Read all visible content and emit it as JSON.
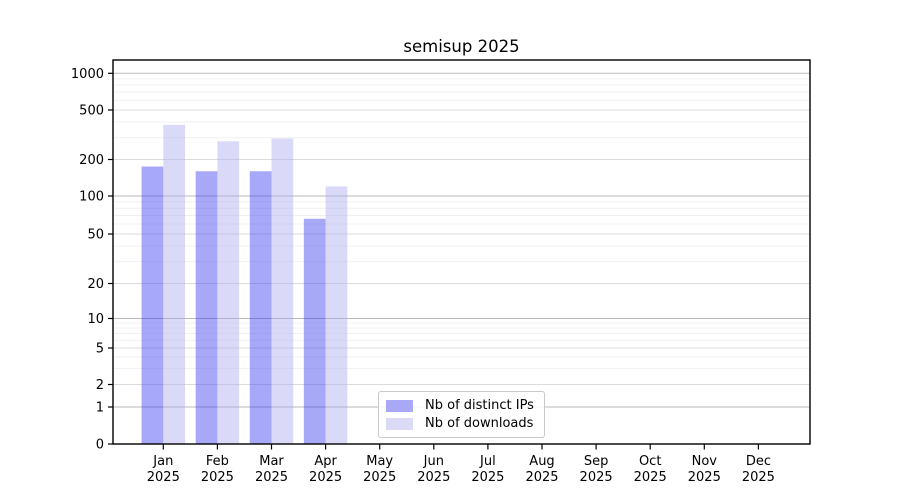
{
  "chart_data": {
    "type": "bar",
    "title": "semisup 2025",
    "x_year_label": "2025",
    "categories": [
      "Jan",
      "Feb",
      "Mar",
      "Apr",
      "May",
      "Jun",
      "Jul",
      "Aug",
      "Sep",
      "Oct",
      "Nov",
      "Dec"
    ],
    "series": [
      {
        "name": "Nb of distinct IPs",
        "color": "#a8a8f6",
        "fill_rgba": "rgba(62,62,240,0.45)",
        "values": [
          175,
          160,
          160,
          66,
          null,
          null,
          null,
          null,
          null,
          null,
          null,
          null
        ]
      },
      {
        "name": "Nb of downloads",
        "color": "#dbdbf8",
        "fill_rgba": "rgba(173,173,240,0.45)",
        "values": [
          380,
          280,
          295,
          120,
          null,
          null,
          null,
          null,
          null,
          null,
          null,
          null
        ]
      }
    ],
    "yticks": [
      0,
      1,
      2,
      5,
      10,
      20,
      50,
      100,
      200,
      500,
      1000
    ],
    "yscale": "symlog",
    "ylim": [
      0,
      1280
    ],
    "grid": true,
    "legend_position": "lower center"
  }
}
